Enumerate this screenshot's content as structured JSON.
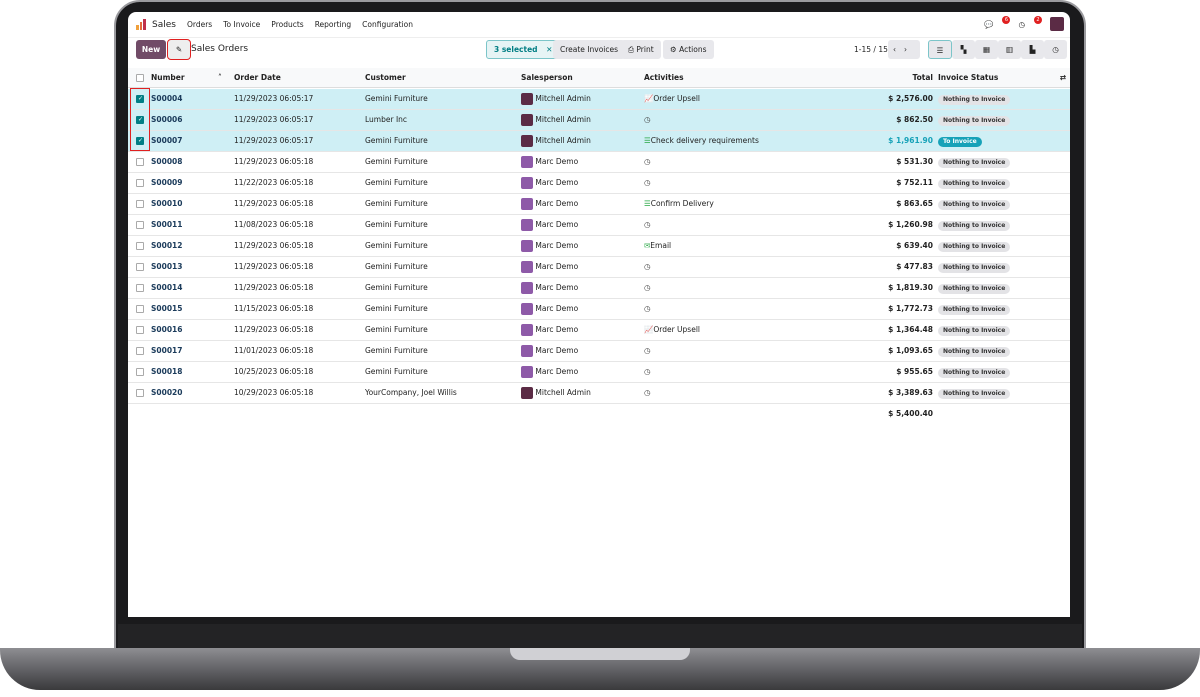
{
  "nav": {
    "app": "Sales",
    "menu": [
      "Orders",
      "To Invoice",
      "Products",
      "Reporting",
      "Configuration"
    ],
    "messages_count": "6",
    "activities_count": "2"
  },
  "control": {
    "new": "New",
    "title": "Sales Orders",
    "selected": "3 selected",
    "create_invoices": "Create Invoices",
    "print": "Print",
    "actions": "Actions",
    "pager": "1-15 / 15"
  },
  "columns": {
    "number": "Number",
    "order_date": "Order Date",
    "customer": "Customer",
    "salesperson": "Salesperson",
    "activities": "Activities",
    "total": "Total",
    "invoice_status": "Invoice Status"
  },
  "rows": [
    {
      "number": "S00004",
      "date": "11/29/2023 06:05:17",
      "customer": "Gemini Furniture",
      "salesperson": "Mitchell Admin",
      "activity": "Order Upsell",
      "activity_icon": "chart-line-icon",
      "total": "$ 2,576.00",
      "status": "Nothing to Invoice",
      "selected": true
    },
    {
      "number": "S00006",
      "date": "11/29/2023 06:05:17",
      "customer": "Lumber Inc",
      "salesperson": "Mitchell Admin",
      "activity": "",
      "activity_icon": "clock-icon",
      "total": "$ 862.50",
      "status": "Nothing to Invoice",
      "selected": true
    },
    {
      "number": "S00007",
      "date": "11/29/2023 06:05:17",
      "customer": "Gemini Furniture",
      "salesperson": "Mitchell Admin",
      "activity": "Check delivery requirements",
      "activity_icon": "todo-list-icon",
      "total": "$ 1,961.90",
      "status": "To Invoice",
      "selected": true
    },
    {
      "number": "S00008",
      "date": "11/29/2023 06:05:18",
      "customer": "Gemini Furniture",
      "salesperson": "Marc Demo",
      "activity": "",
      "activity_icon": "clock-icon",
      "total": "$ 531.30",
      "status": "Nothing to Invoice",
      "selected": false
    },
    {
      "number": "S00009",
      "date": "11/22/2023 06:05:18",
      "customer": "Gemini Furniture",
      "salesperson": "Marc Demo",
      "activity": "",
      "activity_icon": "clock-icon",
      "total": "$ 752.11",
      "status": "Nothing to Invoice",
      "selected": false
    },
    {
      "number": "S00010",
      "date": "11/29/2023 06:05:18",
      "customer": "Gemini Furniture",
      "salesperson": "Marc Demo",
      "activity": "Confirm Delivery",
      "activity_icon": "todo-list-icon",
      "total": "$ 863.65",
      "status": "Nothing to Invoice",
      "selected": false
    },
    {
      "number": "S00011",
      "date": "11/08/2023 06:05:18",
      "customer": "Gemini Furniture",
      "salesperson": "Marc Demo",
      "activity": "",
      "activity_icon": "clock-icon",
      "total": "$ 1,260.98",
      "status": "Nothing to Invoice",
      "selected": false
    },
    {
      "number": "S00012",
      "date": "11/29/2023 06:05:18",
      "customer": "Gemini Furniture",
      "salesperson": "Marc Demo",
      "activity": "Email",
      "activity_icon": "envelope-icon",
      "total": "$ 639.40",
      "status": "Nothing to Invoice",
      "selected": false
    },
    {
      "number": "S00013",
      "date": "11/29/2023 06:05:18",
      "customer": "Gemini Furniture",
      "salesperson": "Marc Demo",
      "activity": "",
      "activity_icon": "clock-icon",
      "total": "$ 477.83",
      "status": "Nothing to Invoice",
      "selected": false
    },
    {
      "number": "S00014",
      "date": "11/29/2023 06:05:18",
      "customer": "Gemini Furniture",
      "salesperson": "Marc Demo",
      "activity": "",
      "activity_icon": "clock-icon",
      "total": "$ 1,819.30",
      "status": "Nothing to Invoice",
      "selected": false
    },
    {
      "number": "S00015",
      "date": "11/15/2023 06:05:18",
      "customer": "Gemini Furniture",
      "salesperson": "Marc Demo",
      "activity": "",
      "activity_icon": "clock-icon",
      "total": "$ 1,772.73",
      "status": "Nothing to Invoice",
      "selected": false
    },
    {
      "number": "S00016",
      "date": "11/29/2023 06:05:18",
      "customer": "Gemini Furniture",
      "salesperson": "Marc Demo",
      "activity": "Order Upsell",
      "activity_icon": "chart-line-icon",
      "total": "$ 1,364.48",
      "status": "Nothing to Invoice",
      "selected": false
    },
    {
      "number": "S00017",
      "date": "11/01/2023 06:05:18",
      "customer": "Gemini Furniture",
      "salesperson": "Marc Demo",
      "activity": "",
      "activity_icon": "clock-icon",
      "total": "$ 1,093.65",
      "status": "Nothing to Invoice",
      "selected": false
    },
    {
      "number": "S00018",
      "date": "10/25/2023 06:05:18",
      "customer": "Gemini Furniture",
      "salesperson": "Marc Demo",
      "activity": "",
      "activity_icon": "clock-icon",
      "total": "$ 955.65",
      "status": "Nothing to Invoice",
      "selected": false
    },
    {
      "number": "S00020",
      "date": "10/29/2023 06:05:18",
      "customer": "YourCompany, Joel Willis",
      "salesperson": "Mitchell Admin",
      "activity": "",
      "activity_icon": "clock-icon",
      "total": "$ 3,389.63",
      "status": "Nothing to Invoice",
      "selected": false
    }
  ],
  "footer": {
    "selected_total": "$ 5,400.40"
  },
  "colors": {
    "brand": "#714b67",
    "selection": "#cfeff5",
    "accent": "#017e84",
    "to_invoice": "#17a2b8"
  }
}
